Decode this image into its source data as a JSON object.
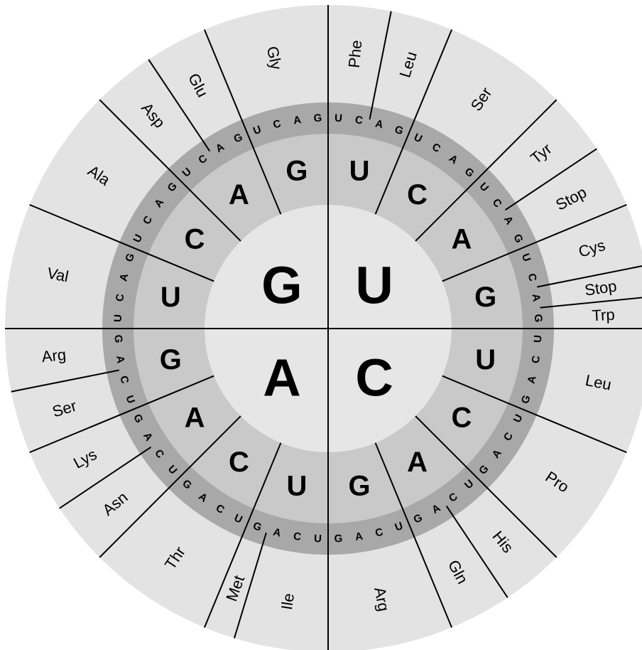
{
  "wheel": {
    "quadrants": [
      {
        "letter": "U",
        "sectors": [
          {
            "letter": "U",
            "third": [
              "U",
              "C",
              "A",
              "G"
            ],
            "amino": [
              "Phe",
              "Phe",
              "Leu",
              "Leu"
            ]
          },
          {
            "letter": "C",
            "third": [
              "U",
              "C",
              "A",
              "G"
            ],
            "amino": [
              "Ser",
              "Ser",
              "Ser",
              "Ser"
            ]
          },
          {
            "letter": "A",
            "third": [
              "U",
              "C",
              "A",
              "G"
            ],
            "amino": [
              "Tyr",
              "Tyr",
              "Stop",
              "Stop"
            ]
          },
          {
            "letter": "G",
            "third": [
              "U",
              "C",
              "A",
              "G"
            ],
            "amino": [
              "Cys",
              "Cys",
              "Stop",
              "Trp"
            ]
          }
        ]
      },
      {
        "letter": "C",
        "sectors": [
          {
            "letter": "U",
            "third": [
              "U",
              "C",
              "A",
              "G"
            ],
            "amino": [
              "Leu",
              "Leu",
              "Leu",
              "Leu"
            ]
          },
          {
            "letter": "C",
            "third": [
              "U",
              "C",
              "A",
              "G"
            ],
            "amino": [
              "Pro",
              "Pro",
              "Pro",
              "Pro"
            ]
          },
          {
            "letter": "A",
            "third": [
              "U",
              "C",
              "A",
              "G"
            ],
            "amino": [
              "His",
              "His",
              "Gln",
              "Gln"
            ]
          },
          {
            "letter": "G",
            "third": [
              "U",
              "C",
              "A",
              "G"
            ],
            "amino": [
              "Arg",
              "Arg",
              "Arg",
              "Arg"
            ]
          }
        ]
      },
      {
        "letter": "A",
        "sectors": [
          {
            "letter": "U",
            "third": [
              "U",
              "C",
              "A",
              "G"
            ],
            "amino": [
              "Ile",
              "Ile",
              "Ile",
              "Met"
            ]
          },
          {
            "letter": "C",
            "third": [
              "U",
              "C",
              "A",
              "G"
            ],
            "amino": [
              "Thr",
              "Thr",
              "Thr",
              "Thr"
            ]
          },
          {
            "letter": "A",
            "third": [
              "U",
              "C",
              "A",
              "G"
            ],
            "amino": [
              "Asn",
              "Asn",
              "Lys",
              "Lys"
            ]
          },
          {
            "letter": "G",
            "third": [
              "U",
              "C",
              "A",
              "G"
            ],
            "amino": [
              "Ser",
              "Ser",
              "Arg",
              "Arg"
            ]
          }
        ]
      },
      {
        "letter": "G",
        "sectors": [
          {
            "letter": "U",
            "third": [
              "U",
              "C",
              "A",
              "G"
            ],
            "amino": [
              "Val",
              "Val",
              "Val",
              "Val"
            ]
          },
          {
            "letter": "C",
            "third": [
              "U",
              "C",
              "A",
              "G"
            ],
            "amino": [
              "Ala",
              "Ala",
              "Ala",
              "Ala"
            ]
          },
          {
            "letter": "A",
            "third": [
              "U",
              "C",
              "A",
              "G"
            ],
            "amino": [
              "Asp",
              "Asp",
              "Glu",
              "Glu"
            ]
          },
          {
            "letter": "G",
            "third": [
              "U",
              "C",
              "A",
              "G"
            ],
            "amino": [
              "Gly",
              "Gly",
              "Gly",
              "Gly"
            ]
          }
        ]
      }
    ]
  }
}
